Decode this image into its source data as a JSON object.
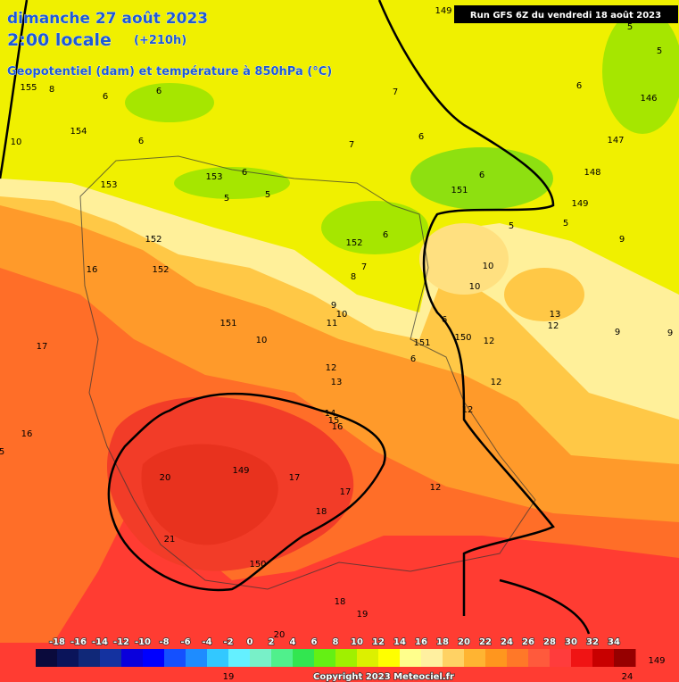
{
  "header": {
    "date": "dimanche 27 août 2023",
    "time": "2:00 locale",
    "lead": "(+210h)",
    "subtitle": "Geopotentiel (dam) et température à 850hPa (°C)",
    "run": "Run GFS 6Z du vendredi 18 août 2023"
  },
  "map_labels": {
    "geopotential": [
      149,
      155,
      154,
      153,
      153,
      152,
      152,
      152,
      151,
      151,
      151,
      150,
      149,
      149,
      150,
      148,
      147,
      146,
      149
    ],
    "temperature": [
      8,
      6,
      6,
      7,
      6,
      5,
      5,
      10,
      6,
      7,
      6,
      6,
      6,
      5,
      5,
      6,
      5,
      5,
      9,
      16,
      10,
      10,
      7,
      8,
      9,
      10,
      11,
      13,
      12,
      6,
      12,
      10,
      17,
      9,
      9,
      6,
      12,
      13,
      12,
      14,
      15,
      16,
      12,
      16,
      5,
      20,
      17,
      17,
      12,
      18,
      21,
      18,
      19,
      20,
      19,
      24
    ]
  },
  "colorbar": {
    "ticks": [
      -18,
      -16,
      -14,
      -12,
      -10,
      -8,
      -6,
      -4,
      -2,
      0,
      2,
      4,
      6,
      8,
      10,
      12,
      14,
      16,
      18,
      20,
      22,
      24,
      26,
      28,
      30,
      32,
      34
    ],
    "colors": [
      "#0a0a3c",
      "#0a145a",
      "#102878",
      "#1432a0",
      "#0a00dc",
      "#0000ff",
      "#1450ff",
      "#1e8cff",
      "#32c8ff",
      "#64f0ff",
      "#78f0c8",
      "#50f08c",
      "#32e650",
      "#64f014",
      "#a0f000",
      "#dcf000",
      "#ffff00",
      "#ffff8c",
      "#fff0a0",
      "#ffd264",
      "#ffb432",
      "#ff961e",
      "#ff7828",
      "#ff5a3c",
      "#ff3c3c",
      "#f01414",
      "#c80000",
      "#960000"
    ],
    "credit": "Copyright 2023 Meteociel.fr"
  }
}
